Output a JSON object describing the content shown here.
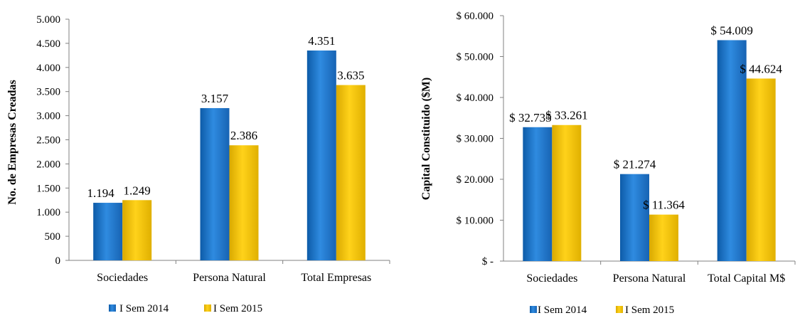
{
  "colors": {
    "series_a": "#1f75c9",
    "series_b": "#f5c400",
    "axis": "#808080"
  },
  "chart_data": [
    {
      "type": "bar",
      "ylabel": "No. de Empresas Creadas",
      "categories": [
        "Sociedades",
        "Persona Natural",
        "Total Empresas"
      ],
      "ylim": [
        0,
        5000
      ],
      "yticks": [
        0,
        500,
        1000,
        1500,
        2000,
        2500,
        3000,
        3500,
        4000,
        4500,
        5000
      ],
      "ytick_labels": [
        "0",
        "500",
        "1.000",
        "1.500",
        "2.000",
        "2.500",
        "3.000",
        "3.500",
        "4.000",
        "4.500",
        "5.000"
      ],
      "series": [
        {
          "name": "I Sem 2014",
          "values": [
            1194,
            3157,
            4351
          ],
          "labels": [
            "1.194",
            "3.157",
            "4.351"
          ]
        },
        {
          "name": "I Sem 2015",
          "values": [
            1249,
            2386,
            3635
          ],
          "labels": [
            "1.249",
            "2.386",
            "3.635"
          ]
        }
      ],
      "legend": "bottom-left",
      "grid": false
    },
    {
      "type": "bar",
      "ylabel": "Capital Constituido ($M)",
      "categories": [
        "Sociedades",
        "Persona Natural",
        "Total Capital M$"
      ],
      "ylim": [
        0,
        60000
      ],
      "yticks": [
        0,
        10000,
        20000,
        30000,
        40000,
        50000,
        60000
      ],
      "ytick_labels": [
        "$ -",
        "$ 10.000",
        "$ 20.000",
        "$ 30.000",
        "$ 40.000",
        "$ 50.000",
        "$ 60.000"
      ],
      "series": [
        {
          "name": "I Sem 2014",
          "values": [
            32735,
            21274,
            54009
          ],
          "labels": [
            "$ 32.735",
            "$ 21.274",
            "$ 54.009"
          ]
        },
        {
          "name": "I Sem 2015",
          "values": [
            33261,
            11364,
            44624
          ],
          "labels": [
            "$ 33.261",
            "$ 11.364",
            "$ 44.624"
          ]
        }
      ],
      "legend": "bottom-center",
      "grid": false
    }
  ]
}
